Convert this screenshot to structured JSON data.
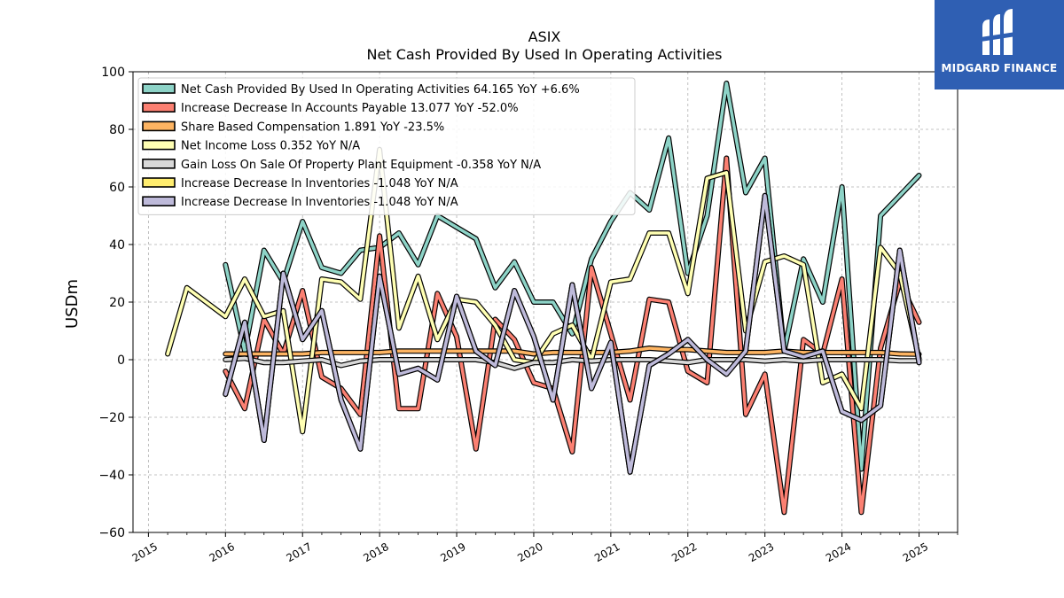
{
  "chart_data": {
    "type": "line",
    "title": "ASIX",
    "subtitle": "Net Cash Provided By Used In Operating Activities",
    "ylabel": "USDm",
    "xlabel": "",
    "ylim": [
      -60,
      100
    ],
    "xlim": [
      2014.8,
      2025.5
    ],
    "yticks": [
      -60,
      -40,
      -20,
      0,
      20,
      40,
      60,
      80,
      100
    ],
    "xticks": [
      2015,
      2016,
      2017,
      2018,
      2019,
      2020,
      2021,
      2022,
      2023,
      2024,
      2025
    ],
    "grid": true,
    "legend_position": "top-left",
    "series": [
      {
        "name": "Net Cash Provided By Used In Operating Activities  64.165 YoY +6.6%",
        "color": "#8dd3c7",
        "x": [
          2016.0,
          2016.25,
          2016.5,
          2016.75,
          2017.0,
          2017.25,
          2017.5,
          2017.75,
          2018.0,
          2018.25,
          2018.5,
          2018.75,
          2019.0,
          2019.25,
          2019.5,
          2019.75,
          2020.0,
          2020.25,
          2020.5,
          2020.75,
          2021.0,
          2021.25,
          2021.5,
          2021.75,
          2022.0,
          2022.25,
          2022.5,
          2022.75,
          2023.0,
          2023.25,
          2023.5,
          2023.75,
          2024.0,
          2024.25,
          2024.5,
          2024.75,
          2025.0
        ],
        "y": [
          33,
          3,
          38,
          27,
          48,
          32,
          30,
          38,
          39,
          44,
          33,
          50,
          46,
          42,
          25,
          34,
          20,
          20,
          9,
          35,
          48,
          58,
          52,
          77,
          30,
          50,
          96,
          58,
          70,
          3,
          35,
          20,
          60,
          -38,
          50,
          57,
          64
        ]
      },
      {
        "name": "Increase Decrease In Accounts Payable  13.077 YoY -52.0%",
        "color": "#fb8072",
        "x": [
          2016.0,
          2016.25,
          2016.5,
          2016.75,
          2017.0,
          2017.25,
          2017.5,
          2017.75,
          2018.0,
          2018.25,
          2018.5,
          2018.75,
          2019.0,
          2019.25,
          2019.5,
          2019.75,
          2020.0,
          2020.25,
          2020.5,
          2020.75,
          2021.0,
          2021.25,
          2021.5,
          2021.75,
          2022.0,
          2022.25,
          2022.5,
          2022.75,
          2023.0,
          2023.25,
          2023.5,
          2023.75,
          2024.0,
          2024.25,
          2024.5,
          2024.75,
          2025.0
        ],
        "y": [
          -4,
          -17,
          14,
          2,
          24,
          -6,
          -10,
          -19,
          43,
          -17,
          -17,
          23,
          8,
          -31,
          14,
          7,
          -8,
          -10,
          -32,
          32,
          9,
          -14,
          21,
          20,
          -4,
          -8,
          70,
          -19,
          -5,
          -53,
          7,
          2,
          28,
          -53,
          4,
          27,
          13
        ]
      },
      {
        "name": "Share Based Compensation  1.891 YoY -23.5%",
        "color": "#fdb462",
        "x": [
          2016.0,
          2016.25,
          2016.5,
          2016.75,
          2017.0,
          2017.25,
          2017.5,
          2017.75,
          2018.0,
          2018.25,
          2018.5,
          2018.75,
          2019.0,
          2019.25,
          2019.5,
          2019.75,
          2020.0,
          2020.25,
          2020.5,
          2020.75,
          2021.0,
          2021.25,
          2021.5,
          2021.75,
          2022.0,
          2022.25,
          2022.5,
          2022.75,
          2023.0,
          2023.25,
          2023.5,
          2023.75,
          2024.0,
          2024.25,
          2024.5,
          2024.75,
          2025.0
        ],
        "y": [
          2,
          2,
          2,
          2,
          2,
          2.5,
          2.5,
          2.5,
          2.5,
          3,
          3,
          3,
          3,
          3,
          3,
          3,
          2,
          2.5,
          2.5,
          2.5,
          2.5,
          3,
          4,
          3.5,
          3.5,
          3,
          2.5,
          2.5,
          2.5,
          3,
          2.5,
          2.5,
          2.5,
          2.5,
          2.5,
          2,
          1.9
        ]
      },
      {
        "name": "Net Income Loss  0.352 YoY N/A",
        "color": "#ffffb3",
        "x": [
          2015.25,
          2015.5,
          2016.0,
          2016.25,
          2016.5,
          2016.75,
          2017.0,
          2017.25,
          2017.5,
          2017.75,
          2018.0,
          2018.25,
          2018.5,
          2018.75,
          2019.0,
          2019.25,
          2019.5,
          2019.75,
          2020.0,
          2020.25,
          2020.5,
          2020.75,
          2021.0,
          2021.25,
          2021.5,
          2021.75,
          2022.0,
          2022.25,
          2022.5,
          2022.75,
          2023.0,
          2023.25,
          2023.5,
          2023.75,
          2024.0,
          2024.25,
          2024.5,
          2024.75,
          2025.0
        ],
        "y": [
          2,
          25,
          15,
          28,
          15,
          17,
          -25,
          28,
          27,
          21,
          73,
          11,
          29,
          7,
          21,
          20,
          12,
          0,
          -1,
          9,
          12,
          0,
          27,
          28,
          44,
          44,
          23,
          63,
          65,
          10,
          34,
          36,
          33,
          -8,
          -5,
          -17,
          39,
          30,
          0.4
        ]
      },
      {
        "name": "Gain Loss On Sale Of Property Plant Equipment  -0.358 YoY N/A",
        "color": "#d9d9d9",
        "x": [
          2016.0,
          2016.25,
          2016.5,
          2016.75,
          2017.0,
          2017.25,
          2017.5,
          2017.75,
          2018.0,
          2018.25,
          2018.5,
          2018.75,
          2019.0,
          2019.25,
          2019.5,
          2019.75,
          2020.0,
          2020.25,
          2020.5,
          2020.75,
          2021.0,
          2021.25,
          2021.5,
          2021.75,
          2022.0,
          2022.25,
          2022.5,
          2022.75,
          2023.0,
          2023.25,
          2023.5,
          2023.75,
          2024.0,
          2024.25,
          2024.5,
          2024.75,
          2025.0
        ],
        "y": [
          0,
          0.5,
          -1,
          -1,
          -0.5,
          0,
          -2,
          -0.5,
          0,
          0,
          0,
          0,
          0,
          0,
          -1,
          -3,
          -1,
          -1,
          0,
          -0.5,
          0,
          0,
          0,
          -0.5,
          -1,
          0,
          0,
          0,
          -0.5,
          0,
          -0.5,
          0,
          0,
          0,
          0,
          -0.4,
          -0.36
        ]
      },
      {
        "name": "Increase Decrease In Inventories  -1.048 YoY N/A",
        "color": "#ffed6f",
        "x": [
          2016.0,
          2016.25,
          2016.5,
          2016.75,
          2017.0,
          2017.25,
          2017.5,
          2017.75,
          2018.0,
          2018.25,
          2018.5,
          2018.75,
          2019.0,
          2019.25,
          2019.5,
          2019.75,
          2020.0,
          2020.25,
          2020.5,
          2020.75,
          2021.0,
          2021.25,
          2021.5,
          2021.75,
          2022.0,
          2022.25,
          2022.5,
          2022.75,
          2023.0,
          2023.25,
          2023.5,
          2023.75,
          2024.0,
          2024.25,
          2024.5,
          2024.75,
          2025.0
        ],
        "y": [
          -12,
          13,
          -28,
          30,
          7,
          17,
          -14,
          -31,
          29,
          -5,
          -3,
          -7,
          22,
          3,
          -2,
          24,
          8,
          -14,
          26,
          -10,
          6,
          -39,
          -2,
          2,
          7,
          0,
          -5,
          3,
          57,
          3,
          1,
          3,
          -18,
          -21,
          -16,
          38,
          -1
        ]
      },
      {
        "name": "Increase Decrease In Inventories  -1.048 YoY N/A",
        "color": "#bebada",
        "x": [
          2016.0,
          2016.25,
          2016.5,
          2016.75,
          2017.0,
          2017.25,
          2017.5,
          2017.75,
          2018.0,
          2018.25,
          2018.5,
          2018.75,
          2019.0,
          2019.25,
          2019.5,
          2019.75,
          2020.0,
          2020.25,
          2020.5,
          2020.75,
          2021.0,
          2021.25,
          2021.5,
          2021.75,
          2022.0,
          2022.25,
          2022.5,
          2022.75,
          2023.0,
          2023.25,
          2023.5,
          2023.75,
          2024.0,
          2024.25,
          2024.5,
          2024.75,
          2025.0
        ],
        "y": [
          -12,
          13,
          -28,
          30,
          7,
          17,
          -14,
          -31,
          29,
          -5,
          -3,
          -7,
          22,
          3,
          -2,
          24,
          8,
          -14,
          26,
          -10,
          6,
          -39,
          -2,
          2,
          7,
          0,
          -5,
          3,
          57,
          3,
          1,
          3,
          -18,
          -21,
          -16,
          38,
          -1
        ]
      }
    ]
  },
  "logo": {
    "text": "MIDGARD FINANCE"
  }
}
